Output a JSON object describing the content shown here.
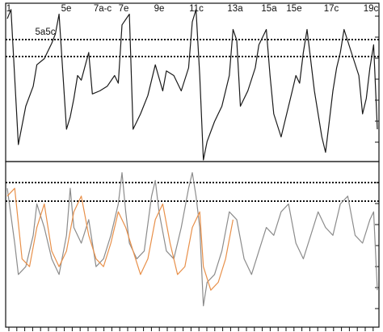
{
  "chart_data": [
    {
      "type": "line",
      "panel": "top",
      "title": "",
      "xlabel": "",
      "ylabel": "",
      "annotations": [
        "1",
        "5e",
        "7a-c",
        "7e",
        "9e",
        "11c",
        "13a",
        "15a",
        "15e",
        "17c",
        "19c",
        "5a5c"
      ],
      "reference_lines": [
        "dotted",
        "dotted"
      ],
      "x_range": [
        0,
        100
      ],
      "y_range": [
        0,
        1
      ],
      "grid": false,
      "legend": "none",
      "series": [
        {
          "color": "#1a1a1a",
          "x": [
            0,
            1,
            3,
            5,
            7,
            8,
            10,
            12,
            13,
            14,
            16,
            17,
            18,
            19,
            20,
            22,
            23,
            25,
            27,
            29,
            30,
            31,
            33,
            34,
            36,
            38,
            40,
            42,
            43,
            45,
            47,
            49,
            50,
            51,
            52,
            53,
            54,
            56,
            58,
            60,
            61,
            62,
            63,
            65,
            67,
            68,
            70,
            71,
            72,
            74,
            76,
            77,
            78,
            79,
            80,
            81,
            83,
            85,
            86,
            87,
            88,
            89,
            90,
            91,
            93,
            95,
            96,
            97,
            98,
            99,
            100
          ],
          "values": [
            0.92,
            0.98,
            0.1,
            0.35,
            0.48,
            0.62,
            0.66,
            0.76,
            0.82,
            0.95,
            0.2,
            0.28,
            0.4,
            0.55,
            0.52,
            0.7,
            0.43,
            0.45,
            0.48,
            0.55,
            0.5,
            0.88,
            0.95,
            0.2,
            0.3,
            0.42,
            0.62,
            0.45,
            0.58,
            0.55,
            0.45,
            0.6,
            0.9,
            0.98,
            0.55,
            0.0,
            0.12,
            0.25,
            0.35,
            0.55,
            0.85,
            0.78,
            0.35,
            0.45,
            0.6,
            0.75,
            0.85,
            0.55,
            0.3,
            0.15,
            0.35,
            0.45,
            0.55,
            0.5,
            0.7,
            0.85,
            0.45,
            0.15,
            0.05,
            0.25,
            0.45,
            0.6,
            0.7,
            0.85,
            0.7,
            0.55,
            0.3,
            0.4,
            0.6,
            0.75,
            0.2
          ]
        }
      ]
    },
    {
      "type": "line",
      "panel": "bottom",
      "title": "",
      "xlabel": "",
      "ylabel": "",
      "reference_lines": [
        "dotted",
        "dotted"
      ],
      "x_range": [
        0,
        100
      ],
      "y_range": [
        0,
        1
      ],
      "grid": false,
      "legend": "none",
      "series": [
        {
          "color": "#8c8c8c",
          "x": [
            0,
            2,
            3,
            5,
            7,
            8,
            10,
            12,
            14,
            16,
            17,
            18,
            20,
            22,
            24,
            26,
            28,
            30,
            31,
            32,
            33,
            35,
            37,
            39,
            40,
            41,
            43,
            45,
            47,
            49,
            50,
            51,
            52,
            53,
            54,
            56,
            58,
            60,
            62,
            64,
            66,
            68,
            70,
            72,
            74,
            76,
            78,
            80,
            82,
            84,
            86,
            88,
            90,
            92,
            94,
            96,
            98,
            99,
            100
          ],
          "values": [
            0.85,
            0.5,
            0.3,
            0.35,
            0.55,
            0.75,
            0.6,
            0.4,
            0.3,
            0.55,
            0.85,
            0.6,
            0.5,
            0.65,
            0.35,
            0.4,
            0.55,
            0.75,
            0.95,
            0.7,
            0.5,
            0.4,
            0.45,
            0.8,
            0.9,
            0.7,
            0.45,
            0.4,
            0.6,
            0.85,
            0.95,
            0.8,
            0.6,
            0.1,
            0.25,
            0.3,
            0.45,
            0.7,
            0.65,
            0.4,
            0.3,
            0.45,
            0.6,
            0.55,
            0.7,
            0.75,
            0.5,
            0.4,
            0.55,
            0.7,
            0.6,
            0.55,
            0.75,
            0.8,
            0.55,
            0.5,
            0.65,
            0.7,
            0.2
          ]
        },
        {
          "color": "#e8904a",
          "x": [
            0,
            2,
            4,
            6,
            8,
            10,
            12,
            14,
            16,
            18,
            20,
            22,
            24,
            26,
            28,
            30,
            32,
            34,
            36,
            38,
            40,
            42,
            44,
            46,
            48,
            50,
            52,
            53,
            55,
            57,
            59,
            61
          ],
          "values": [
            0.8,
            0.85,
            0.4,
            0.35,
            0.6,
            0.75,
            0.45,
            0.35,
            0.45,
            0.7,
            0.8,
            0.55,
            0.4,
            0.35,
            0.5,
            0.7,
            0.6,
            0.45,
            0.3,
            0.4,
            0.65,
            0.75,
            0.5,
            0.3,
            0.35,
            0.6,
            0.7,
            0.35,
            0.2,
            0.25,
            0.4,
            0.65
          ]
        }
      ]
    }
  ]
}
